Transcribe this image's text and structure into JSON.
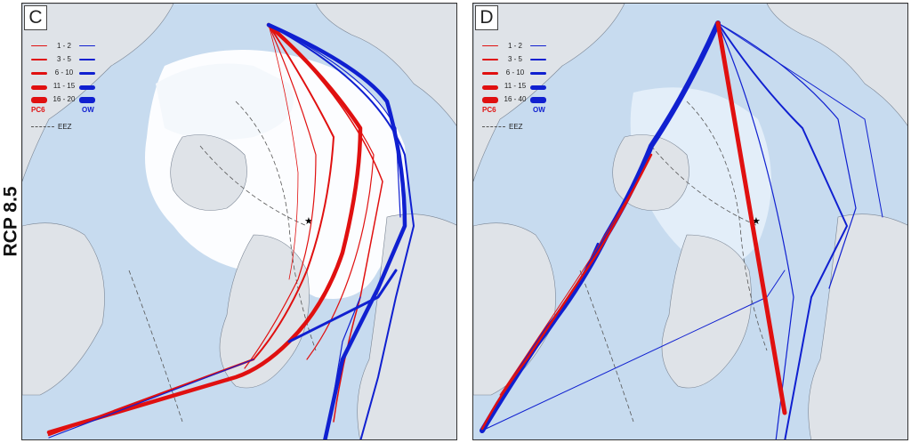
{
  "row_label": "RCP 8.5",
  "colors": {
    "pc6": "#e01010",
    "ow": "#1020d0",
    "ocean": "#c7dbef",
    "land": "#dfe3e8",
    "ice": "#ffffff"
  },
  "panels": [
    {
      "letter": "C",
      "legend": {
        "ranges": [
          "1 - 2",
          "3 - 5",
          "6 - 10",
          "11 - 15",
          "16 - 20"
        ],
        "key_pc6": "PC6",
        "key_ow": "OW",
        "eez_label": "EEZ"
      }
    },
    {
      "letter": "D",
      "legend": {
        "ranges": [
          "1 - 2",
          "3 - 5",
          "6 - 10",
          "11 - 15",
          "16 - 40"
        ],
        "key_pc6": "PC6",
        "key_ow": "OW",
        "eez_label": "EEZ"
      }
    }
  ]
}
